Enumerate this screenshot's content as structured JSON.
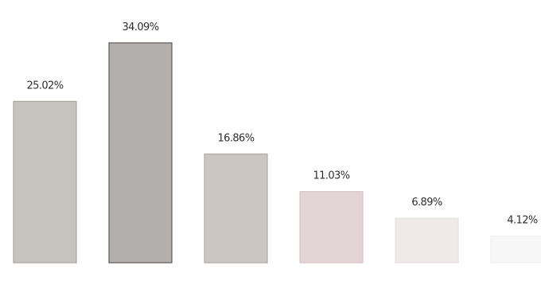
{
  "chart_data": {
    "type": "bar",
    "categories": [
      "",
      "",
      "",
      "",
      "",
      ""
    ],
    "values": [
      25.02,
      34.09,
      16.86,
      11.03,
      6.89,
      4.12
    ],
    "data_labels": [
      "25.02%",
      "34.09%",
      "16.86%",
      "11.03%",
      "6.89%",
      "4.12%"
    ],
    "title": "",
    "xlabel": "",
    "ylabel": "",
    "ylim": [
      0,
      40
    ],
    "grid": false,
    "legend": "none",
    "bar_colors": [
      "#c6c2be",
      "#b2afad",
      "#ccc6c3",
      "#e3d4d5",
      "#f0e9ea",
      "#f8f7f7"
    ],
    "bar_stroke_colors": [
      "#aaa6a2",
      "#5e5b59",
      "#b1aba8",
      "#d6c6c7",
      "#e8dfe0",
      "#f1efef"
    ]
  }
}
